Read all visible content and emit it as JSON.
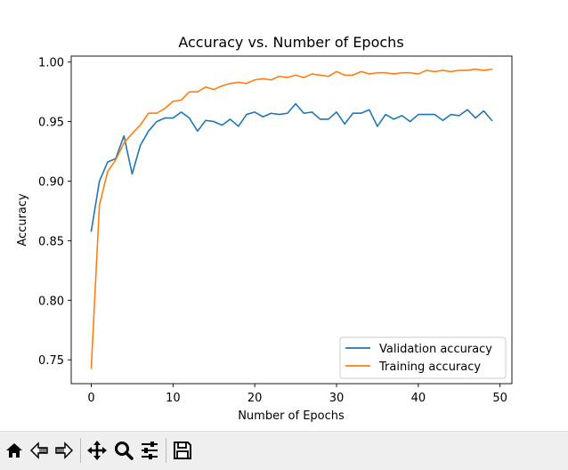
{
  "chart_data": {
    "type": "line",
    "title": "Accuracy vs. Number of Epochs",
    "xlabel": "Number of Epochs",
    "ylabel": "Accuracy",
    "xlim": [
      -2.45,
      51.45
    ],
    "ylim": [
      0.73,
      1.005
    ],
    "xticks": [
      0,
      10,
      20,
      30,
      40,
      50
    ],
    "yticks": [
      0.75,
      0.8,
      0.85,
      0.9,
      0.95,
      1.0
    ],
    "xtick_labels": [
      "0",
      "10",
      "20",
      "30",
      "40",
      "50"
    ],
    "ytick_labels": [
      "0.75",
      "0.80",
      "0.85",
      "0.90",
      "0.95",
      "1.00"
    ],
    "grid": false,
    "legend_position": "lower-right",
    "x": [
      0,
      1,
      2,
      3,
      4,
      5,
      6,
      7,
      8,
      9,
      10,
      11,
      12,
      13,
      14,
      15,
      16,
      17,
      18,
      19,
      20,
      21,
      22,
      23,
      24,
      25,
      26,
      27,
      28,
      29,
      30,
      31,
      32,
      33,
      34,
      35,
      36,
      37,
      38,
      39,
      40,
      41,
      42,
      43,
      44,
      45,
      46,
      47,
      48,
      49
    ],
    "series": [
      {
        "name": "Validation accuracy",
        "color": "#1f77b4",
        "values": [
          0.858,
          0.9,
          0.916,
          0.919,
          0.938,
          0.906,
          0.93,
          0.942,
          0.95,
          0.953,
          0.953,
          0.958,
          0.953,
          0.942,
          0.951,
          0.95,
          0.947,
          0.952,
          0.946,
          0.956,
          0.958,
          0.954,
          0.957,
          0.956,
          0.957,
          0.965,
          0.957,
          0.958,
          0.952,
          0.952,
          0.958,
          0.948,
          0.957,
          0.957,
          0.96,
          0.946,
          0.956,
          0.952,
          0.955,
          0.95,
          0.956,
          0.956,
          0.956,
          0.951,
          0.956,
          0.955,
          0.96,
          0.953,
          0.959,
          0.951
        ]
      },
      {
        "name": "Training accuracy",
        "color": "#ff7f0e",
        "values": [
          0.743,
          0.88,
          0.908,
          0.918,
          0.932,
          0.94,
          0.947,
          0.957,
          0.957,
          0.961,
          0.967,
          0.968,
          0.975,
          0.975,
          0.979,
          0.977,
          0.98,
          0.982,
          0.983,
          0.982,
          0.985,
          0.986,
          0.985,
          0.988,
          0.987,
          0.989,
          0.987,
          0.99,
          0.989,
          0.988,
          0.992,
          0.989,
          0.989,
          0.992,
          0.99,
          0.991,
          0.991,
          0.99,
          0.991,
          0.991,
          0.99,
          0.993,
          0.992,
          0.993,
          0.992,
          0.993,
          0.993,
          0.994,
          0.993,
          0.994
        ]
      }
    ]
  },
  "toolbar": {
    "buttons": [
      "home-icon",
      "back-icon",
      "forward-icon",
      "pan-icon",
      "zoom-icon",
      "configure-subplots-icon",
      "save-icon"
    ]
  }
}
